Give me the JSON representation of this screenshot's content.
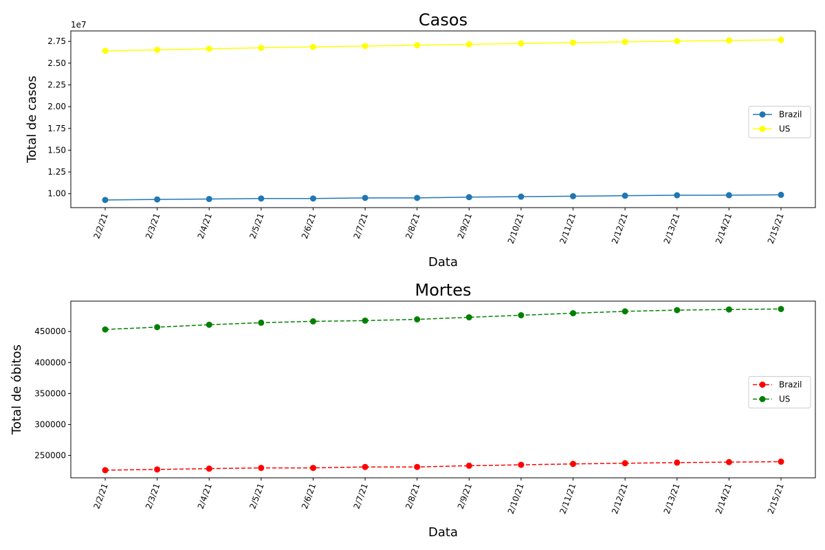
{
  "chart_data": [
    {
      "type": "line",
      "title": "Casos",
      "xlabel": "Data",
      "ylabel": "Total de casos",
      "y_offset_label": "1e7",
      "ylim": [
        0.84,
        2.87
      ],
      "yticks": [
        1.0,
        1.25,
        1.5,
        1.75,
        2.0,
        2.25,
        2.5,
        2.75
      ],
      "ytick_labels": [
        "1.00",
        "1.25",
        "1.50",
        "1.75",
        "2.00",
        "2.25",
        "2.50",
        "2.75"
      ],
      "categories": [
        "2/2/21",
        "2/3/21",
        "2/4/21",
        "2/5/21",
        "2/6/21",
        "2/7/21",
        "2/8/21",
        "2/9/21",
        "2/10/21",
        "2/11/21",
        "2/12/21",
        "2/13/21",
        "2/14/21",
        "2/15/21"
      ],
      "legend_position": "center-right",
      "series": [
        {
          "name": "Brazil",
          "color": "#1f77b4",
          "linestyle": "solid",
          "values": [
            0.928,
            0.934,
            0.939,
            0.945,
            0.945,
            0.952,
            0.952,
            0.96,
            0.966,
            0.971,
            0.977,
            0.982,
            0.983,
            0.987
          ]
        },
        {
          "name": "US",
          "color": "#ffff00",
          "linestyle": "solid",
          "values": [
            2.641,
            2.653,
            2.665,
            2.676,
            2.686,
            2.696,
            2.706,
            2.716,
            2.726,
            2.736,
            2.745,
            2.753,
            2.76,
            2.767
          ]
        }
      ]
    },
    {
      "type": "line",
      "title": "Mortes",
      "xlabel": "Data",
      "ylabel": "Total de óbitos",
      "ylim": [
        214000,
        499000
      ],
      "yticks": [
        250000,
        300000,
        350000,
        400000,
        450000
      ],
      "ytick_labels": [
        "250000",
        "300000",
        "350000",
        "400000",
        "450000"
      ],
      "categories": [
        "2/2/21",
        "2/3/21",
        "2/4/21",
        "2/5/21",
        "2/6/21",
        "2/7/21",
        "2/8/21",
        "2/9/21",
        "2/10/21",
        "2/11/21",
        "2/12/21",
        "2/13/21",
        "2/14/21",
        "2/15/21"
      ],
      "legend_position": "center-right",
      "series": [
        {
          "name": "Brazil",
          "color": "#ff0000",
          "linestyle": "dashed",
          "values": [
            226300,
            227500,
            228800,
            230000,
            230000,
            231500,
            231500,
            233500,
            235000,
            236400,
            237500,
            238500,
            239300,
            240000
          ]
        },
        {
          "name": "US",
          "color": "#008000",
          "linestyle": "dashed",
          "values": [
            453300,
            457000,
            460900,
            464200,
            466400,
            467600,
            469600,
            472900,
            476200,
            479500,
            482500,
            484500,
            485500,
            486300
          ]
        }
      ]
    }
  ]
}
